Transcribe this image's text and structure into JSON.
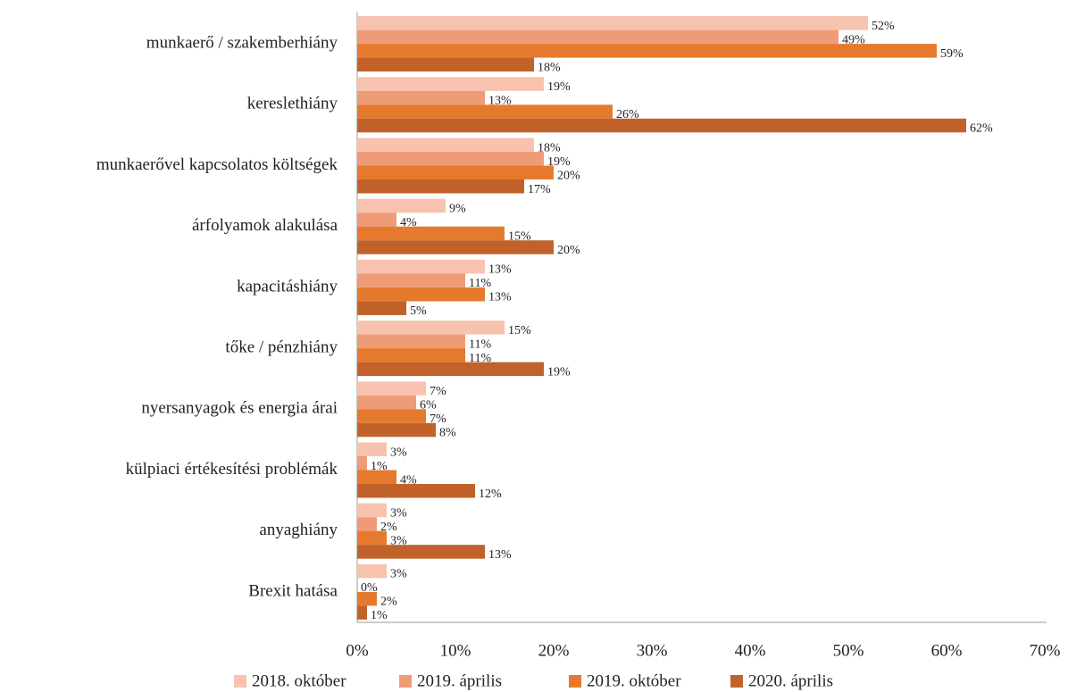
{
  "chart_data": {
    "type": "bar",
    "orientation": "horizontal",
    "categories": [
      "munkaerő / szakemberhiány",
      "kereslethiány",
      "munkaerővel kapcsolatos költségek",
      "árfolyamok alakulása",
      "kapacitáshiány",
      "tőke / pénzhiány",
      "nyersanyagok és energia árai",
      "külpiaci értékesítési problémák",
      "anyaghiány",
      "Brexit hatása"
    ],
    "series": [
      {
        "name": "2018. október",
        "color": "#f7c3ae",
        "values": [
          52,
          19,
          18,
          9,
          13,
          15,
          7,
          3,
          3,
          3
        ],
        "value_labels": [
          "52%",
          "19%",
          "18%",
          "9%",
          "13%",
          "15%",
          "7%",
          "3%",
          "3%",
          "3%"
        ]
      },
      {
        "name": "2019. április",
        "color": "#f09b77",
        "values": [
          49,
          13,
          19,
          4,
          11,
          11,
          6,
          1,
          2,
          0
        ],
        "value_labels": [
          "49%",
          "13%",
          "19%",
          "4%",
          "11%",
          "11%",
          "6%",
          "1%",
          "2%",
          "0%"
        ]
      },
      {
        "name": "2019. október",
        "color": "#e57a2e",
        "values": [
          59,
          26,
          20,
          15,
          13,
          11,
          7,
          4,
          3,
          2
        ],
        "value_labels": [
          "59%",
          "26%",
          "20%",
          "15%",
          "13%",
          "11%",
          "7%",
          "4%",
          "3%",
          "2%"
        ]
      },
      {
        "name": "2020. április",
        "color": "#c0622a",
        "values": [
          18,
          62,
          17,
          20,
          5,
          19,
          8,
          12,
          13,
          1
        ],
        "value_labels": [
          "18%",
          "62%",
          "17%",
          "20%",
          "5%",
          "19%",
          "8%",
          "12%",
          "13%",
          "1%"
        ]
      }
    ],
    "xlim": [
      0,
      70
    ],
    "xticks": [
      {
        "value": 0,
        "label": "0%"
      },
      {
        "value": 10,
        "label": "10%"
      },
      {
        "value": 20,
        "label": "20%"
      },
      {
        "value": 30,
        "label": "30%"
      },
      {
        "value": 40,
        "label": "40%"
      },
      {
        "value": 50,
        "label": "50%"
      },
      {
        "value": 60,
        "label": "60%"
      },
      {
        "value": 70,
        "label": "70%"
      }
    ],
    "legend": "bottom"
  }
}
